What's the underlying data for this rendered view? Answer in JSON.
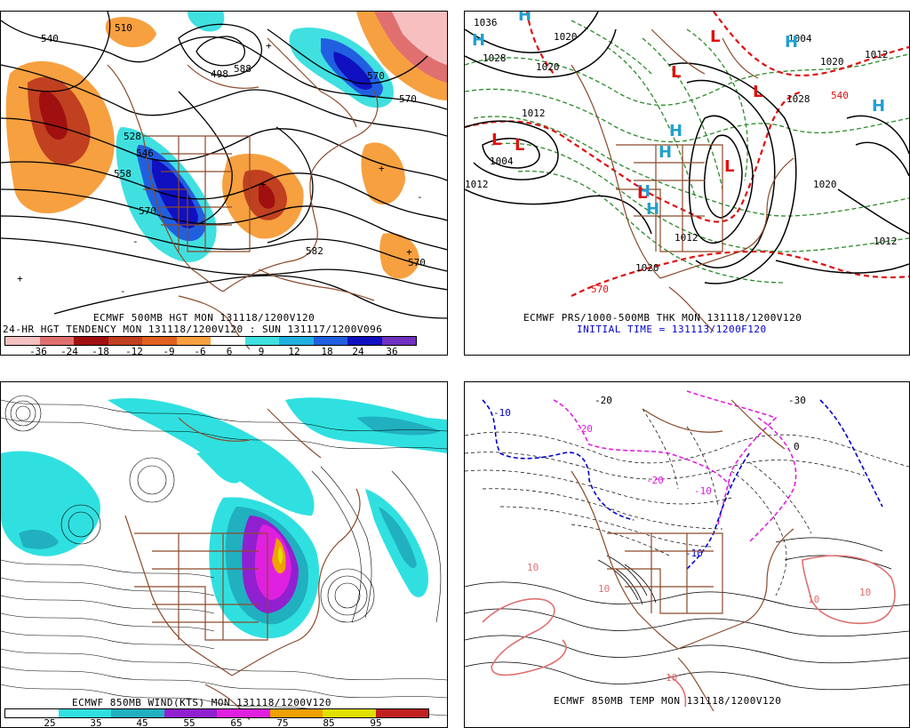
{
  "panel1": {
    "caption1": "ECMWF 500MB HGT MON 131118/1200V120",
    "caption2": "24-HR HGT TENDENCY MON 131118/1200V120 : SUN 131117/1200V096",
    "scale_labels": [
      "-36",
      "-24",
      "-18",
      "-12",
      "-9",
      "-6",
      "6",
      "9",
      "12",
      "18",
      "24",
      "36"
    ],
    "scale_colors": [
      "#f7c0c0",
      "#e07070",
      "#a01010",
      "#c04020",
      "#e06020",
      "#f7a040",
      "#ffffff",
      "#40e0e0",
      "#20b0e0",
      "#2060e0",
      "#1010c0",
      "#7030c0"
    ],
    "contour_labels": [
      "510",
      "540",
      "546",
      "558",
      "570",
      "570",
      "570",
      "582",
      "588",
      "498",
      "528",
      "570"
    ],
    "tendency_marks": [
      "+",
      "+",
      "+",
      "+",
      "-",
      "-",
      "-",
      "+"
    ]
  },
  "panel2": {
    "caption1": "ECMWF PRS/1000-500MB THK MON 131118/1200V120",
    "caption2": "INITIAL TIME = 131113/1200F120",
    "pressure_labels": [
      "1004",
      "1012",
      "1012",
      "1020",
      "1020",
      "1028",
      "1036",
      "1004",
      "1012",
      "1020",
      "1012",
      "1020",
      "1028",
      "1020",
      "1012"
    ],
    "thickness_labels": [
      "540",
      "570"
    ],
    "high_symbols": [
      "H",
      "H",
      "H",
      "H",
      "H",
      "H",
      "H",
      "H"
    ],
    "low_symbols": [
      "L",
      "L",
      "L",
      "L",
      "L",
      "L",
      "L"
    ]
  },
  "panel3": {
    "caption1": "ECMWF 850MB WIND(KTS) MON 131118/1200V120",
    "scale_labels": [
      "25",
      "35",
      "45",
      "55",
      "65",
      "75",
      "85",
      "95"
    ],
    "scale_colors": [
      "#ffffff",
      "#30e0e0",
      "#20b0c0",
      "#9020d0",
      "#e020e0",
      "#f0a000",
      "#e0e000",
      "#c02020"
    ]
  },
  "panel4": {
    "caption1": "ECMWF 850MB TEMP MON 131118/1200V120",
    "temperature_labels": [
      "-10",
      "-20",
      "-20",
      "-30",
      "-20",
      "-10",
      "-10",
      "10",
      "10",
      "10",
      "10",
      "0",
      "10"
    ]
  }
}
